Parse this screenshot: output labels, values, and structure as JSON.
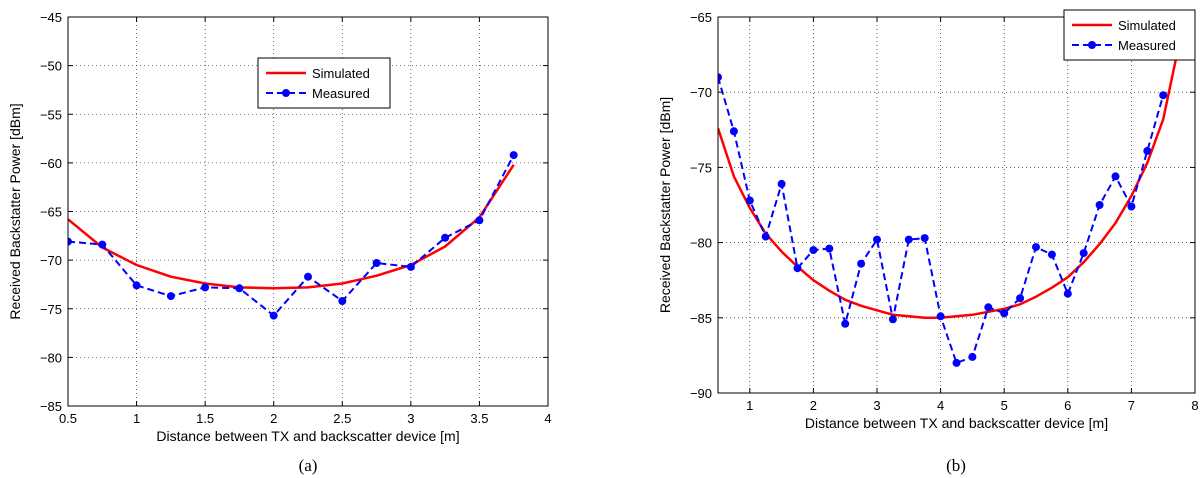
{
  "chart_data": [
    {
      "type": "line",
      "panel_label": "(a)",
      "xlabel": "Distance between TX and backscatter device [m]",
      "ylabel": "Received Backstatter Power [dBm]",
      "xlim": [
        0.5,
        4
      ],
      "ylim": [
        -85,
        -45
      ],
      "xticks": [
        0.5,
        1,
        1.5,
        2,
        2.5,
        3,
        3.5,
        4
      ],
      "yticks": [
        -85,
        -80,
        -75,
        -70,
        -65,
        -60,
        -55,
        -50,
        -45
      ],
      "grid": true,
      "legend_position": "upper-center",
      "series": [
        {
          "name": "Simulated",
          "color": "#ff0000",
          "style": "solid",
          "x": [
            0.5,
            0.75,
            1.0,
            1.25,
            1.5,
            1.75,
            2.0,
            2.25,
            2.5,
            2.75,
            3.0,
            3.25,
            3.5,
            3.75
          ],
          "y": [
            -65.8,
            -68.7,
            -70.5,
            -71.7,
            -72.4,
            -72.8,
            -72.9,
            -72.8,
            -72.4,
            -71.6,
            -70.5,
            -68.6,
            -65.6,
            -60.2
          ]
        },
        {
          "name": "Measured",
          "color": "#0000ff",
          "style": "dashed",
          "marker": "circle",
          "x": [
            0.5,
            0.75,
            1.0,
            1.25,
            1.5,
            1.75,
            2.0,
            2.25,
            2.5,
            2.75,
            3.0,
            3.25,
            3.5,
            3.75
          ],
          "y": [
            -68.1,
            -68.4,
            -72.6,
            -73.7,
            -72.8,
            -72.9,
            -75.7,
            -71.7,
            -74.2,
            -70.3,
            -70.7,
            -67.7,
            -65.9,
            -59.2
          ]
        }
      ]
    },
    {
      "type": "line",
      "panel_label": "(b)",
      "xlabel": "Distance between TX and backscatter device [m]",
      "ylabel": "Received Backstatter Power [dBm]",
      "xlim": [
        0.5,
        8
      ],
      "ylim": [
        -90,
        -65
      ],
      "xticks": [
        1,
        2,
        3,
        4,
        5,
        6,
        7,
        8
      ],
      "yticks": [
        -90,
        -85,
        -80,
        -75,
        -70,
        -65
      ],
      "grid": true,
      "legend_position": "top-right",
      "series": [
        {
          "name": "Simulated",
          "color": "#ff0000",
          "style": "solid",
          "x": [
            0.5,
            0.75,
            1.0,
            1.25,
            1.5,
            1.75,
            2.0,
            2.25,
            2.5,
            2.75,
            3.0,
            3.25,
            3.5,
            3.75,
            4.0,
            4.25,
            4.5,
            4.75,
            5.0,
            5.25,
            5.5,
            5.75,
            6.0,
            6.25,
            6.5,
            6.75,
            7.0,
            7.25,
            7.5,
            7.7
          ],
          "y": [
            -72.4,
            -75.6,
            -77.7,
            -79.4,
            -80.6,
            -81.6,
            -82.5,
            -83.2,
            -83.8,
            -84.2,
            -84.5,
            -84.8,
            -84.9,
            -85.0,
            -85.0,
            -84.9,
            -84.8,
            -84.6,
            -84.4,
            -84.1,
            -83.6,
            -83.0,
            -82.3,
            -81.3,
            -80.1,
            -78.7,
            -76.9,
            -74.7,
            -71.8,
            -67.8
          ]
        },
        {
          "name": "Measured",
          "color": "#0000ff",
          "style": "dashed",
          "marker": "circle",
          "x": [
            0.5,
            0.75,
            1.0,
            1.25,
            1.5,
            1.75,
            2.0,
            2.25,
            2.5,
            2.75,
            3.0,
            3.25,
            3.5,
            3.75,
            4.0,
            4.25,
            4.5,
            4.75,
            5.0,
            5.25,
            5.5,
            5.75,
            6.0,
            6.25,
            6.5,
            6.75,
            7.0,
            7.25,
            7.5
          ],
          "y": [
            -69.0,
            -72.6,
            -77.2,
            -79.6,
            -76.1,
            -81.7,
            -80.5,
            -80.4,
            -85.4,
            -81.4,
            -79.8,
            -85.1,
            -79.8,
            -79.7,
            -84.9,
            -88.0,
            -87.6,
            -84.3,
            -84.7,
            -83.7,
            -80.3,
            -80.8,
            -83.4,
            -80.7,
            -77.5,
            -75.6,
            -77.6,
            -73.9,
            -70.2
          ]
        }
      ]
    }
  ]
}
